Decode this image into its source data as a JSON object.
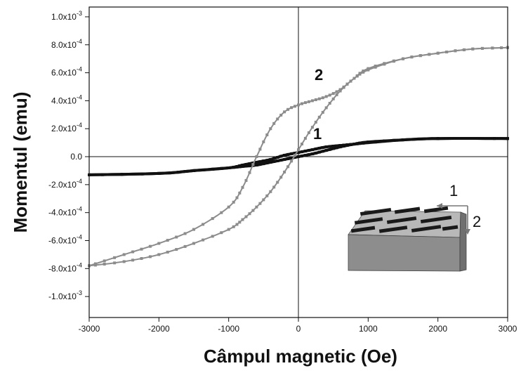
{
  "chart_data": {
    "type": "line",
    "title": "",
    "xlabel": "Câmpul magnetic (Oe)",
    "ylabel": "Momentul (emu)",
    "xlim": [
      -3000,
      3000
    ],
    "ylim": [
      -0.00115,
      0.00107
    ],
    "x_ticks": [
      {
        "value": -3000,
        "label": "-3000"
      },
      {
        "value": -2000,
        "label": "-2000"
      },
      {
        "value": -1000,
        "label": "-1000"
      },
      {
        "value": 0,
        "label": "0"
      },
      {
        "value": 1000,
        "label": "1000"
      },
      {
        "value": 2000,
        "label": "2000"
      },
      {
        "value": 3000,
        "label": "3000"
      }
    ],
    "y_ticks": [
      {
        "value": 0.001,
        "mant": "1.0x10",
        "exp": "-3"
      },
      {
        "value": 0.0008,
        "mant": "8.0x10",
        "exp": "-4"
      },
      {
        "value": 0.0006,
        "mant": "6.0x10",
        "exp": "-4"
      },
      {
        "value": 0.0004,
        "mant": "4.0x10",
        "exp": "-4"
      },
      {
        "value": 0.0002,
        "mant": "2.0x10",
        "exp": "-4"
      },
      {
        "value": 0.0,
        "mant": "0.0",
        "exp": ""
      },
      {
        "value": -0.0002,
        "mant": "-2.0x10",
        "exp": "-4"
      },
      {
        "value": -0.0004,
        "mant": "-4.0x10",
        "exp": "-4"
      },
      {
        "value": -0.0006,
        "mant": "-6.0x10",
        "exp": "-4"
      },
      {
        "value": -0.0008,
        "mant": "-8.0x10",
        "exp": "-4"
      },
      {
        "value": -0.001,
        "mant": "-1.0x10",
        "exp": "-3"
      }
    ],
    "reference_lines": {
      "x": 0,
      "y": 0
    },
    "series": [
      {
        "label": "1",
        "color": "#111111",
        "branches": [
          {
            "x": [
              -3000,
              -2000,
              -1500,
              -1000,
              -800,
              -600,
              -400,
              -200,
              0,
              200,
              400,
              600,
              800,
              1000,
              1500,
              2000,
              3000
            ],
            "y": [
              -0.00013,
              -0.00012,
              -0.0001,
              -8e-05,
              -7e-05,
              -6e-05,
              -4e-05,
              -2e-05,
              0.0,
              2e-05,
              4.5e-05,
              7e-05,
              9e-05,
              0.000105,
              0.00012,
              0.00013,
              0.00013
            ]
          },
          {
            "x": [
              3000,
              2000,
              1500,
              1000,
              800,
              600,
              400,
              200,
              0,
              -200,
              -400,
              -600,
              -800,
              -1000,
              -1500,
              -2000,
              -3000
            ],
            "y": [
              0.00013,
              0.00013,
              0.00012,
              0.0001,
              9e-05,
              8e-05,
              7e-05,
              5e-05,
              3e-05,
              1e-05,
              -2e-05,
              -4e-05,
              -6e-05,
              -8e-05,
              -0.0001,
              -0.00012,
              -0.00013
            ]
          }
        ]
      },
      {
        "label": "2",
        "color": "#8c8c8c",
        "branches": [
          {
            "x": [
              -3000,
              -2500,
              -2000,
              -1500,
              -1000,
              -800,
              -600,
              -400,
              -200,
              0,
              200,
              400,
              600,
              800,
              1000,
              1500,
              2000,
              2500,
              3000
            ],
            "y": [
              -0.00078,
              -0.00075,
              -0.0007,
              -0.00062,
              -0.00052,
              -0.00045,
              -0.00036,
              -0.00025,
              -0.00011,
              5e-05,
              0.00021,
              0.00035,
              0.00047,
              0.00056,
              0.00063,
              0.0007,
              0.00074,
              0.00077,
              0.00078
            ]
          },
          {
            "x": [
              3000,
              2500,
              2000,
              1500,
              1000,
              800,
              600,
              400,
              200,
              0,
              -200,
              -400,
              -600,
              -800,
              -1000,
              -1500,
              -2000,
              -2500,
              -3000
            ],
            "y": [
              0.00078,
              0.00077,
              0.00074,
              0.0007,
              0.00062,
              0.00056,
              0.00048,
              0.00043,
              0.0004,
              0.00037,
              0.00032,
              0.0002,
              0.0,
              -0.00022,
              -0.00036,
              -0.00052,
              -0.00062,
              -0.0007,
              -0.00078
            ]
          }
        ]
      }
    ],
    "inset": {
      "description_labels": [
        "1",
        "2"
      ]
    }
  }
}
